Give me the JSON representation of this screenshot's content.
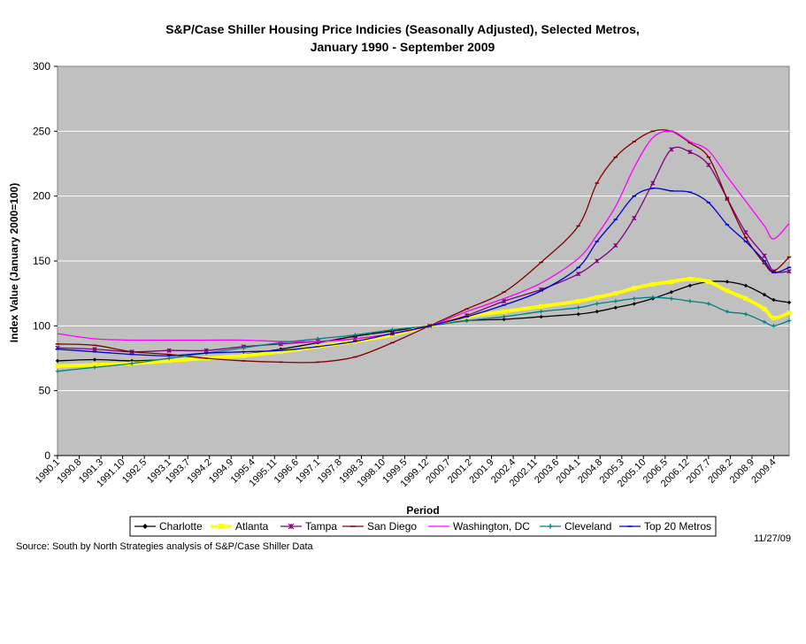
{
  "chart_data": {
    "type": "line",
    "title_line1": "S&P/Case Shiller Housing Price Indicies (Seasonally Adjusted), Selected Metros,",
    "title_line2": "January 1990 - September 2009",
    "xlabel": "Period",
    "ylabel": "Index Value (January 2000=100)",
    "ylim": [
      0,
      300
    ],
    "yticks": [
      0,
      50,
      100,
      150,
      200,
      250,
      300
    ],
    "grid": true,
    "legend_position": "bottom",
    "x_tick_labels": [
      "1990.1",
      "1990.8",
      "1991.3",
      "1991.10",
      "1992.5",
      "1993.1",
      "1993.7",
      "1994.2",
      "1994.9",
      "1995.4",
      "1995.11",
      "1996.6",
      "1997.1",
      "1997.8",
      "1998.3",
      "1998.10",
      "1999.5",
      "1999.12",
      "2000.7",
      "2001.2",
      "2001.9",
      "2002.4",
      "2002.11",
      "2003.6",
      "2004.1",
      "2004.8",
      "2005.3",
      "2005.10",
      "2006.5",
      "2006.12",
      "2007.7",
      "2008.2",
      "2008.9",
      "2009.4"
    ],
    "x": [
      "1990.1",
      "1991.1",
      "1992.1",
      "1993.1",
      "1994.1",
      "1995.1",
      "1996.1",
      "1997.1",
      "1998.1",
      "1999.1",
      "2000.1",
      "2001.1",
      "2002.1",
      "2003.1",
      "2004.1",
      "2004.7",
      "2005.1",
      "2005.7",
      "2006.1",
      "2006.7",
      "2007.1",
      "2007.7",
      "2008.1",
      "2008.7",
      "2009.1",
      "2009.4",
      "2009.9"
    ],
    "series": [
      {
        "name": "Charlotte",
        "color": "#000000",
        "marker": "diamond",
        "values": [
          73,
          74,
          73,
          74,
          75,
          78,
          82,
          87,
          92,
          96,
          100,
          104,
          105,
          107,
          109,
          111,
          114,
          117,
          121,
          126,
          131,
          134,
          134,
          131,
          124,
          120,
          118
        ]
      },
      {
        "name": "Atlanta",
        "color": "#ffff00",
        "marker": "square",
        "values": [
          69,
          70,
          71,
          73,
          75,
          77,
          80,
          84,
          88,
          93,
          100,
          107,
          111,
          115,
          119,
          122,
          125,
          129,
          132,
          134,
          136,
          134,
          127,
          121,
          113,
          106,
          110
        ]
      },
      {
        "name": "Tampa",
        "color": "#800080",
        "marker": "star",
        "values": [
          83,
          82,
          80,
          81,
          81,
          84,
          86,
          88,
          90,
          94,
          100,
          108,
          119,
          128,
          140,
          150,
          162,
          183,
          210,
          236,
          234,
          224,
          198,
          172,
          154,
          142,
          142
        ]
      },
      {
        "name": "San Diego",
        "color": "#800000",
        "marker": "dash",
        "values": [
          86,
          85,
          80,
          78,
          75,
          73,
          72,
          72,
          76,
          87,
          100,
          113,
          126,
          149,
          177,
          210,
          230,
          242,
          250,
          250,
          241,
          230,
          198,
          168,
          148,
          142,
          153
        ]
      },
      {
        "name": "Washington, DC",
        "color": "#ff00ff",
        "marker": "none",
        "values": [
          94,
          90,
          89,
          89,
          89,
          89,
          88,
          88,
          90,
          94,
          100,
          111,
          121,
          133,
          152,
          170,
          192,
          222,
          245,
          250,
          242,
          235,
          215,
          196,
          177,
          167,
          179
        ]
      },
      {
        "name": "Cleveland",
        "color": "#008080",
        "marker": "plus",
        "values": [
          65,
          68,
          71,
          75,
          79,
          83,
          87,
          90,
          93,
          97,
          100,
          104,
          107,
          111,
          114,
          117,
          119,
          121,
          122,
          121,
          119,
          117,
          111,
          109,
          103,
          100,
          104
        ]
      },
      {
        "name": "Top 20 Metros",
        "color": "#0000cc",
        "marker": "dash",
        "values": [
          82,
          80,
          78,
          77,
          79,
          80,
          81,
          84,
          88,
          94,
          100,
          107,
          116,
          127,
          145,
          165,
          182,
          200,
          206,
          204,
          203,
          195,
          178,
          165,
          150,
          141,
          145
        ]
      }
    ]
  },
  "source_note": "Source: South by North Strategies analysis of S&P/Case Shiller Data",
  "date_note": "11/27/09"
}
